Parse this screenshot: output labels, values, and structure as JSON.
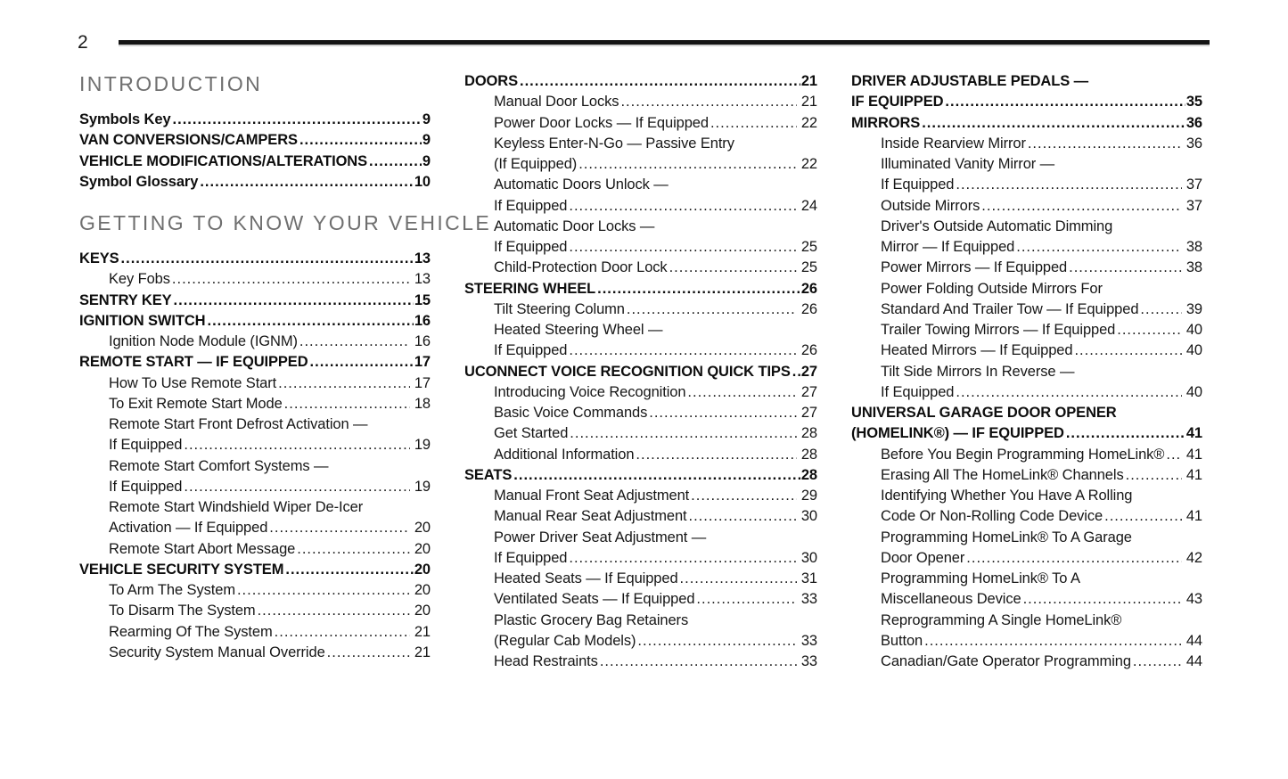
{
  "page": {
    "number": "2"
  },
  "colors": {
    "background": "#ffffff",
    "body_text": "#161616",
    "bold_text": "#0d0d0d",
    "heading_gray": "#6f6f6f",
    "rule_black": "#141414"
  },
  "columns": [
    {
      "blocks": [
        {
          "type": "heading",
          "text": "INTRODUCTION"
        },
        {
          "type": "rows",
          "rows": [
            {
              "label": "Symbols Key",
              "page": "9",
              "bold": true,
              "indent": false
            },
            {
              "label": "VAN CONVERSIONS/CAMPERS",
              "page": "9",
              "bold": true,
              "indent": false
            },
            {
              "label": "VEHICLE MODIFICATIONS/ALTERATIONS",
              "page": "9",
              "bold": true,
              "indent": false
            },
            {
              "label": "Symbol Glossary",
              "page": "10",
              "bold": true,
              "indent": false
            }
          ]
        },
        {
          "type": "heading",
          "text": "GETTING TO KNOW YOUR VEHICLE"
        },
        {
          "type": "rows",
          "rows": [
            {
              "label": "KEYS",
              "page": "13",
              "bold": true,
              "indent": false
            },
            {
              "label": "Key Fobs",
              "page": "13",
              "bold": false,
              "indent": true
            },
            {
              "label": "SENTRY KEY",
              "page": "15",
              "bold": true,
              "indent": false
            },
            {
              "label": "IGNITION SWITCH",
              "page": "16",
              "bold": true,
              "indent": false
            },
            {
              "label": "Ignition Node Module (IGNM)",
              "page": "16",
              "bold": false,
              "indent": true
            },
            {
              "label": "REMOTE START — IF EQUIPPED",
              "page": "17",
              "bold": true,
              "indent": false
            },
            {
              "label": "How To Use Remote Start",
              "page": "17",
              "bold": false,
              "indent": true
            },
            {
              "label": "To Exit Remote Start Mode",
              "page": "18",
              "bold": false,
              "indent": true
            },
            {
              "label": "Remote Start Front Defrost Activation —",
              "page": "",
              "bold": false,
              "indent": true
            },
            {
              "label": "If Equipped",
              "page": "19",
              "bold": false,
              "indent": true
            },
            {
              "label": "Remote Start Comfort Systems —",
              "page": "",
              "bold": false,
              "indent": true
            },
            {
              "label": "If Equipped",
              "page": "19",
              "bold": false,
              "indent": true
            },
            {
              "label": "Remote Start Windshield Wiper De-Icer",
              "page": "",
              "bold": false,
              "indent": true
            },
            {
              "label": "Activation — If Equipped",
              "page": "20",
              "bold": false,
              "indent": true
            },
            {
              "label": "Remote Start Abort Message",
              "page": "20",
              "bold": false,
              "indent": true
            },
            {
              "label": "VEHICLE SECURITY SYSTEM",
              "page": "20",
              "bold": true,
              "indent": false
            },
            {
              "label": "To Arm The System",
              "page": "20",
              "bold": false,
              "indent": true
            },
            {
              "label": "To Disarm The System",
              "page": "20",
              "bold": false,
              "indent": true
            },
            {
              "label": "Rearming Of The System",
              "page": "21",
              "bold": false,
              "indent": true
            },
            {
              "label": "Security System Manual Override",
              "page": "21",
              "bold": false,
              "indent": true
            }
          ]
        }
      ]
    },
    {
      "blocks": [
        {
          "type": "rows",
          "rows": [
            {
              "label": "DOORS",
              "page": "21",
              "bold": true,
              "indent": false
            },
            {
              "label": "Manual Door Locks",
              "page": "21",
              "bold": false,
              "indent": true
            },
            {
              "label": "Power Door Locks — If Equipped",
              "page": "22",
              "bold": false,
              "indent": true
            },
            {
              "label": "Keyless Enter-N-Go — Passive Entry",
              "page": "",
              "bold": false,
              "indent": true
            },
            {
              "label": "(If Equipped)",
              "page": "22",
              "bold": false,
              "indent": true
            },
            {
              "label": "Automatic Doors Unlock —",
              "page": "",
              "bold": false,
              "indent": true
            },
            {
              "label": "If Equipped",
              "page": "24",
              "bold": false,
              "indent": true
            },
            {
              "label": "Automatic Door Locks —",
              "page": "",
              "bold": false,
              "indent": true
            },
            {
              "label": "If Equipped",
              "page": "25",
              "bold": false,
              "indent": true
            },
            {
              "label": "Child-Protection Door Lock",
              "page": "25",
              "bold": false,
              "indent": true
            },
            {
              "label": "STEERING WHEEL",
              "page": "26",
              "bold": true,
              "indent": false
            },
            {
              "label": "Tilt Steering Column",
              "page": "26",
              "bold": false,
              "indent": true
            },
            {
              "label": "Heated Steering Wheel —",
              "page": "",
              "bold": false,
              "indent": true
            },
            {
              "label": "If Equipped",
              "page": "26",
              "bold": false,
              "indent": true
            },
            {
              "label": "UCONNECT VOICE RECOGNITION QUICK TIPS",
              "page": "27",
              "bold": true,
              "indent": false
            },
            {
              "label": "Introducing Voice Recognition",
              "page": "27",
              "bold": false,
              "indent": true
            },
            {
              "label": "Basic Voice Commands",
              "page": "27",
              "bold": false,
              "indent": true
            },
            {
              "label": "Get Started",
              "page": "28",
              "bold": false,
              "indent": true
            },
            {
              "label": "Additional Information",
              "page": "28",
              "bold": false,
              "indent": true
            },
            {
              "label": "SEATS",
              "page": "28",
              "bold": true,
              "indent": false
            },
            {
              "label": "Manual Front Seat Adjustment",
              "page": "29",
              "bold": false,
              "indent": true
            },
            {
              "label": "Manual Rear Seat Adjustment",
              "page": "30",
              "bold": false,
              "indent": true
            },
            {
              "label": "Power Driver Seat Adjustment —",
              "page": "",
              "bold": false,
              "indent": true
            },
            {
              "label": "If Equipped",
              "page": "30",
              "bold": false,
              "indent": true
            },
            {
              "label": "Heated Seats — If Equipped",
              "page": "31",
              "bold": false,
              "indent": true
            },
            {
              "label": "Ventilated Seats — If Equipped",
              "page": "33",
              "bold": false,
              "indent": true
            },
            {
              "label": "Plastic Grocery Bag Retainers",
              "page": "",
              "bold": false,
              "indent": true
            },
            {
              "label": "(Regular Cab Models)",
              "page": "33",
              "bold": false,
              "indent": true
            },
            {
              "label": "Head Restraints",
              "page": "33",
              "bold": false,
              "indent": true
            }
          ]
        }
      ]
    },
    {
      "blocks": [
        {
          "type": "rows",
          "rows": [
            {
              "label": "DRIVER ADJUSTABLE PEDALS —",
              "page": "",
              "bold": true,
              "indent": false
            },
            {
              "label": "IF EQUIPPED",
              "page": "35",
              "bold": true,
              "indent": false
            },
            {
              "label": "MIRRORS",
              "page": "36",
              "bold": true,
              "indent": false
            },
            {
              "label": "Inside Rearview Mirror",
              "page": "36",
              "bold": false,
              "indent": true
            },
            {
              "label": "Illuminated Vanity Mirror —",
              "page": "",
              "bold": false,
              "indent": true
            },
            {
              "label": "If Equipped",
              "page": "37",
              "bold": false,
              "indent": true
            },
            {
              "label": "Outside Mirrors",
              "page": "37",
              "bold": false,
              "indent": true
            },
            {
              "label": "Driver's Outside Automatic Dimming",
              "page": "",
              "bold": false,
              "indent": true
            },
            {
              "label": "Mirror — If Equipped",
              "page": "38",
              "bold": false,
              "indent": true
            },
            {
              "label": "Power Mirrors — If Equipped",
              "page": "38",
              "bold": false,
              "indent": true
            },
            {
              "label": "Power Folding Outside Mirrors For",
              "page": "",
              "bold": false,
              "indent": true
            },
            {
              "label": "Standard And Trailer Tow — If Equipped",
              "page": "39",
              "bold": false,
              "indent": true
            },
            {
              "label": "Trailer Towing Mirrors — If Equipped",
              "page": "40",
              "bold": false,
              "indent": true
            },
            {
              "label": "Heated Mirrors — If Equipped",
              "page": "40",
              "bold": false,
              "indent": true
            },
            {
              "label": "Tilt Side Mirrors In Reverse —",
              "page": "",
              "bold": false,
              "indent": true
            },
            {
              "label": "If Equipped",
              "page": "40",
              "bold": false,
              "indent": true
            },
            {
              "label": "UNIVERSAL GARAGE DOOR OPENER",
              "page": "",
              "bold": true,
              "indent": false
            },
            {
              "label": "(HOMELINK®) — IF EQUIPPED",
              "page": "41",
              "bold": true,
              "indent": false
            },
            {
              "label": "Before You Begin Programming HomeLink®",
              "page": "41",
              "bold": false,
              "indent": true
            },
            {
              "label": "Erasing All The HomeLink® Channels",
              "page": "41",
              "bold": false,
              "indent": true
            },
            {
              "label": "Identifying Whether You Have A Rolling",
              "page": "",
              "bold": false,
              "indent": true
            },
            {
              "label": "Code Or Non-Rolling Code Device",
              "page": "41",
              "bold": false,
              "indent": true
            },
            {
              "label": "Programming HomeLink® To A Garage",
              "page": "",
              "bold": false,
              "indent": true
            },
            {
              "label": "Door Opener",
              "page": "42",
              "bold": false,
              "indent": true
            },
            {
              "label": "Programming HomeLink® To A",
              "page": "",
              "bold": false,
              "indent": true
            },
            {
              "label": "Miscellaneous Device",
              "page": "43",
              "bold": false,
              "indent": true
            },
            {
              "label": "Reprogramming A Single HomeLink®",
              "page": "",
              "bold": false,
              "indent": true
            },
            {
              "label": "Button",
              "page": "44",
              "bold": false,
              "indent": true
            },
            {
              "label": "Canadian/Gate Operator Programming",
              "page": "44",
              "bold": false,
              "indent": true
            }
          ]
        }
      ]
    }
  ]
}
